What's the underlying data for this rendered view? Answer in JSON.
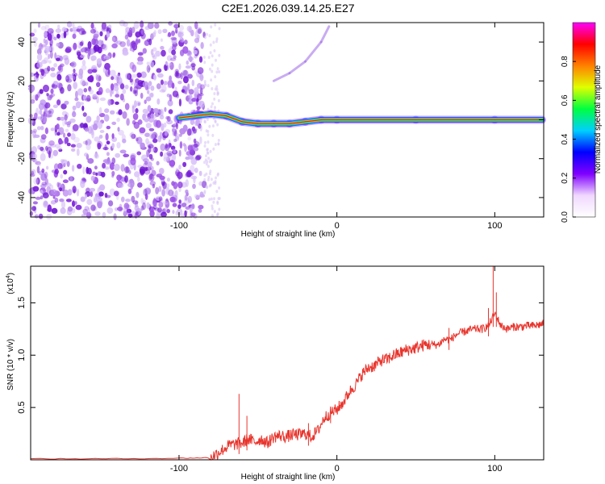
{
  "title": "C2E1.2026.039.14.25.E27",
  "chart_data": [
    {
      "type": "heatmap",
      "xlabel": "Height of straight line (km)",
      "ylabel": "Frequency (Hz)",
      "xlim": [
        -194,
        131
      ],
      "ylim": [
        -50,
        50
      ],
      "x_ticks": [
        -100,
        0,
        100
      ],
      "x_tick_labels": [
        "-100",
        "0",
        "100"
      ],
      "y_ticks": [
        -40,
        -20,
        0,
        20,
        40
      ],
      "y_tick_labels": [
        "-40",
        "-20",
        "0",
        "20",
        "40"
      ],
      "colorbar": {
        "label": "Normalized spectral amplitude",
        "range": [
          0,
          1
        ],
        "ticks": [
          0.0,
          0.2,
          0.4,
          0.6,
          0.8
        ],
        "tick_labels": [
          "0.0",
          "0.2",
          "0.4",
          "0.6",
          "0.8"
        ],
        "colormap": [
          "#ffffff",
          "#f0d8ff",
          "#8000ff",
          "#0000ff",
          "#00d0ff",
          "#00ff40",
          "#e0ff00",
          "#ff8000",
          "#ff0000",
          "#ff00ff"
        ]
      },
      "signal_track": {
        "x": [
          -100,
          -90,
          -80,
          -70,
          -60,
          -50,
          -40,
          -30,
          -20,
          -10,
          0,
          50,
          100,
          130
        ],
        "y": [
          1,
          2,
          3,
          2,
          -1,
          -2,
          -2,
          -2,
          -1,
          0,
          0,
          0,
          0,
          0
        ]
      },
      "secondary_track": {
        "x": [
          -40,
          -30,
          -20,
          -10,
          -5
        ],
        "y": [
          20,
          24,
          30,
          40,
          48
        ]
      },
      "noise_region_x": [
        -194,
        -84
      ]
    },
    {
      "type": "line",
      "xlabel": "Height of straight line (km)",
      "ylabel": "SNR (10 * v/v)",
      "y_multiplier_label": "(x10",
      "y_multiplier_exp": "4",
      "y_multiplier_close": ")",
      "xlim": [
        -194,
        131
      ],
      "ylim": [
        0,
        1.85
      ],
      "x_ticks": [
        -100,
        0,
        100
      ],
      "x_tick_labels": [
        "-100",
        "0",
        "100"
      ],
      "y_ticks": [
        0.5,
        1.0,
        1.5
      ],
      "y_tick_labels": [
        "0.5",
        "1.0",
        "1.5"
      ],
      "series": [
        {
          "color": "#e8342c",
          "x": [
            -194,
            -150,
            -100,
            -80,
            -76,
            -72,
            -68,
            -64,
            -60,
            -56,
            -52,
            -48,
            -44,
            -40,
            -36,
            -32,
            -28,
            -24,
            -20,
            -16,
            -12,
            -8,
            -4,
            0,
            4,
            8,
            12,
            16,
            20,
            24,
            28,
            32,
            36,
            40,
            44,
            48,
            52,
            56,
            60,
            64,
            68,
            72,
            76,
            80,
            84,
            88,
            92,
            96,
            100,
            104,
            108,
            112,
            116,
            120,
            124,
            128,
            131
          ],
          "y": [
            0.01,
            0.01,
            0.015,
            0.02,
            0.06,
            0.1,
            0.14,
            0.15,
            0.16,
            0.2,
            0.17,
            0.2,
            0.16,
            0.22,
            0.23,
            0.22,
            0.24,
            0.24,
            0.25,
            0.22,
            0.28,
            0.4,
            0.45,
            0.48,
            0.55,
            0.65,
            0.72,
            0.82,
            0.88,
            0.9,
            0.95,
            0.96,
            1.0,
            1.02,
            1.05,
            1.06,
            1.08,
            1.1,
            1.1,
            1.1,
            1.15,
            1.15,
            1.2,
            1.22,
            1.24,
            1.25,
            1.25,
            1.28,
            1.4,
            1.28,
            1.25,
            1.27,
            1.27,
            1.28,
            1.28,
            1.29,
            1.3
          ]
        }
      ],
      "spikes": [
        {
          "x": -62,
          "y": 0.63
        },
        {
          "x": -57,
          "y": 0.42
        },
        {
          "x": -18,
          "y": 0.35
        },
        {
          "x": -4,
          "y": 0.44
        },
        {
          "x": 71,
          "y": 1.26
        },
        {
          "x": 99,
          "y": 1.85
        },
        {
          "x": 96,
          "y": 1.45
        },
        {
          "x": 101,
          "y": 1.6
        }
      ]
    }
  ]
}
